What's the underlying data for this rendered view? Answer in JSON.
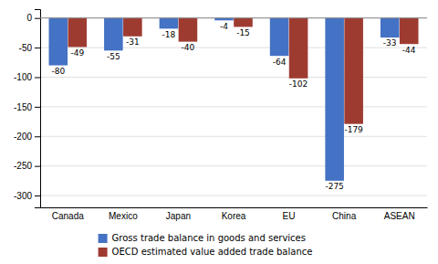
{
  "chart_data": {
    "type": "bar",
    "categories": [
      "Canada",
      "Mexico",
      "Japan",
      "Korea",
      "EU",
      "China",
      "ASEAN"
    ],
    "series": [
      {
        "name": "Gross trade balance in goods and services",
        "color": "#4472C4",
        "values": [
          -80,
          -55,
          -18,
          -4,
          -64,
          -275,
          -33
        ]
      },
      {
        "name": "OECD estimated value added trade balance",
        "color": "#9E3B31",
        "values": [
          -49,
          -31,
          -40,
          -15,
          -102,
          -179,
          -44
        ]
      }
    ],
    "ylim": [
      -320,
      15
    ],
    "yticks": [
      0,
      -50,
      -100,
      -150,
      -200,
      -250,
      -300
    ],
    "grid": true,
    "data_labels": true,
    "legend": "bottom"
  }
}
